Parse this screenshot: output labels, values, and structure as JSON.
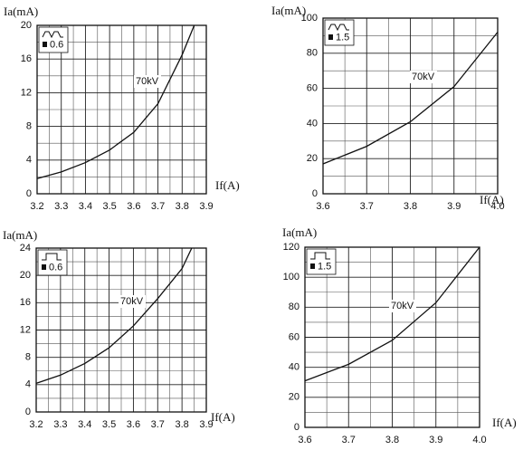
{
  "chart_data": [
    {
      "type": "line",
      "y_label": "Ia(mA)",
      "x_label": "If(A)",
      "pulse": "double",
      "legend_text": "0.6",
      "xlim": [
        3.2,
        3.9
      ],
      "xticks": [
        3.2,
        3.3,
        3.4,
        3.5,
        3.6,
        3.7,
        3.8,
        3.9
      ],
      "ylim": [
        0,
        20
      ],
      "yticks": [
        0,
        4,
        8,
        12,
        16,
        20
      ],
      "grid": true,
      "x": [
        3.2,
        3.3,
        3.4,
        3.5,
        3.6,
        3.7,
        3.8,
        3.85
      ],
      "series": [
        {
          "name": "70kV",
          "color": "#111111",
          "values": [
            1.8,
            2.6,
            3.7,
            5.2,
            7.3,
            10.7,
            16.5,
            20
          ]
        }
      ]
    },
    {
      "type": "line",
      "y_label": "Ia(mA)",
      "x_label": "If(A)",
      "pulse": "double",
      "legend_text": "1.5",
      "xlim": [
        3.6,
        4.0
      ],
      "xticks": [
        3.6,
        3.7,
        3.8,
        3.9,
        {
          "value": 4,
          "label": "4.0"
        }
      ],
      "ylim": [
        0,
        100
      ],
      "yticks": [
        0,
        20,
        40,
        60,
        80,
        100
      ],
      "grid": true,
      "x": [
        3.6,
        3.7,
        3.8,
        3.9,
        4.0
      ],
      "series": [
        {
          "name": "70kV",
          "color": "#111111",
          "values": [
            17,
            27,
            41,
            61,
            92
          ]
        }
      ]
    },
    {
      "type": "line",
      "y_label": "Ia(mA)",
      "x_label": "If(A)",
      "pulse": "single",
      "legend_text": "0.6",
      "xlim": [
        3.2,
        3.9
      ],
      "xticks": [
        3.2,
        3.3,
        3.4,
        3.5,
        3.6,
        3.7,
        3.8,
        3.9
      ],
      "ylim": [
        0,
        24
      ],
      "yticks": [
        0,
        4,
        8,
        12,
        16,
        20,
        24
      ],
      "grid": true,
      "x": [
        3.2,
        3.3,
        3.4,
        3.5,
        3.6,
        3.7,
        3.8,
        3.84
      ],
      "series": [
        {
          "name": "70kV",
          "color": "#111111",
          "values": [
            4.2,
            5.4,
            7.1,
            9.4,
            12.6,
            16.6,
            21,
            24
          ]
        }
      ]
    },
    {
      "type": "line",
      "y_label": "Ia(mA)",
      "x_label": "If(A)",
      "pulse": "single",
      "legend_text": "1.5",
      "xlim": [
        3.6,
        4.0
      ],
      "xticks": [
        3.6,
        3.7,
        3.8,
        3.9,
        {
          "value": 4,
          "label": "4.0"
        }
      ],
      "ylim": [
        0,
        120
      ],
      "yticks": [
        0,
        20,
        40,
        60,
        80,
        100,
        120
      ],
      "grid": true,
      "x": [
        3.6,
        3.7,
        3.8,
        3.9,
        4.0
      ],
      "series": [
        {
          "name": "70kV",
          "color": "#111111",
          "values": [
            31,
            42,
            58,
            83,
            120
          ]
        }
      ]
    }
  ]
}
